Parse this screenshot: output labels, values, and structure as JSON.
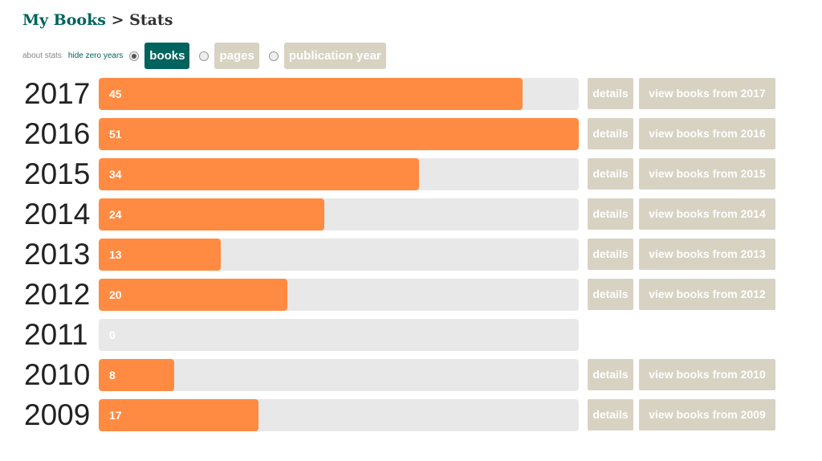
{
  "header": {
    "parent": "My Books",
    "separator": ">",
    "current": "Stats"
  },
  "controls": {
    "about_stats": "about stats",
    "hide_zero_years": "hide zero years",
    "options": [
      {
        "label": "books",
        "selected": true
      },
      {
        "label": "pages",
        "selected": false
      },
      {
        "label": "publication year",
        "selected": false
      }
    ]
  },
  "scale_max": 51,
  "colors": {
    "bar_fill": "#ff8b42",
    "bar_track": "#e8e8e8",
    "brand_teal": "#00635d",
    "button_tan": "#d8d2c2"
  },
  "rows": [
    {
      "year": "2017",
      "count": 45,
      "details_label": "details",
      "view_label": "view books from 2017"
    },
    {
      "year": "2016",
      "count": 51,
      "details_label": "details",
      "view_label": "view books from 2016"
    },
    {
      "year": "2015",
      "count": 34,
      "details_label": "details",
      "view_label": "view books from 2015"
    },
    {
      "year": "2014",
      "count": 24,
      "details_label": "details",
      "view_label": "view books from 2014"
    },
    {
      "year": "2013",
      "count": 13,
      "details_label": "details",
      "view_label": "view books from 2013"
    },
    {
      "year": "2012",
      "count": 20,
      "details_label": "details",
      "view_label": "view books from 2012"
    },
    {
      "year": "2011",
      "count": 0
    },
    {
      "year": "2010",
      "count": 8,
      "details_label": "details",
      "view_label": "view books from 2010"
    },
    {
      "year": "2009",
      "count": 17,
      "details_label": "details",
      "view_label": "view books from 2009"
    }
  ]
}
